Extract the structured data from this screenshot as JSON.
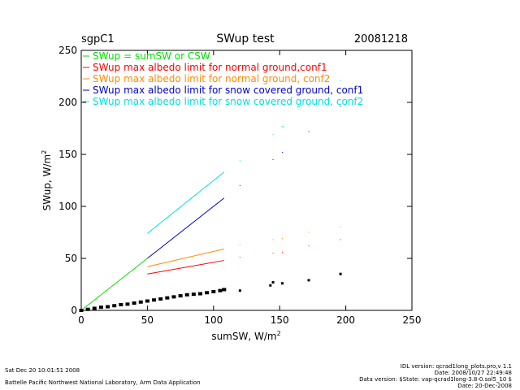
{
  "chart_data": {
    "type": "scatter",
    "site": "sgpC1",
    "title": "SWup test",
    "date": "20081218",
    "xlabel_base": "sumSW, W/m",
    "xlabel_sup": "2",
    "ylabel_base": "SWup, W/m",
    "ylabel_sup": "2",
    "xlim": [
      0,
      250
    ],
    "ylim": [
      0,
      250
    ],
    "xticks": [
      0,
      50,
      100,
      150,
      200,
      250
    ],
    "yticks": [
      0,
      50,
      100,
      150,
      200,
      250
    ],
    "legend": [
      {
        "label": "SWup = sumSW or CSW",
        "color": "#00e000"
      },
      {
        "label": "SWup max albedo limit for normal ground,conf1",
        "color": "#ff0000"
      },
      {
        "label": "SWup max albedo limit for normal ground, conf2",
        "color": "#ff8c00"
      },
      {
        "label": "SWup max albedo limit for snow covered ground, conf1",
        "color": "#0000cc"
      },
      {
        "label": "SWup max albedo limit for snow covered ground, conf2",
        "color": "#00e0e0"
      }
    ],
    "lines": [
      {
        "name": "one-to-one",
        "color": "#00e000",
        "x": [
          0,
          50
        ],
        "y": [
          0,
          50
        ]
      },
      {
        "name": "normal-conf1",
        "color": "#ff0000",
        "x": [
          50,
          108
        ],
        "y": [
          35,
          48
        ]
      },
      {
        "name": "normal-conf2",
        "color": "#ff8c00",
        "x": [
          50,
          108
        ],
        "y": [
          42,
          59
        ]
      },
      {
        "name": "snow-conf1",
        "color": "#0000cc",
        "x": [
          50,
          108
        ],
        "y": [
          50,
          108
        ]
      },
      {
        "name": "snow-conf2",
        "color": "#00e0e0",
        "x": [
          50,
          108
        ],
        "y": [
          74,
          133
        ]
      }
    ],
    "limit_dots": [
      {
        "color": "#ff0000",
        "x": [
          120,
          145,
          152,
          172,
          196
        ],
        "y": [
          51,
          55,
          56,
          62,
          68
        ]
      },
      {
        "color": "#ff8c00",
        "x": [
          120,
          145,
          152,
          172,
          196
        ],
        "y": [
          63,
          68,
          69,
          75,
          80
        ]
      },
      {
        "color": "#0000cc",
        "x": [
          120,
          145,
          152,
          172,
          196
        ],
        "y": [
          120,
          145,
          152,
          172,
          196
        ]
      },
      {
        "color": "#00e0e0",
        "x": [
          120,
          145,
          152,
          172,
          196
        ],
        "y": [
          144,
          169,
          177,
          196,
          221
        ]
      }
    ],
    "data_points": {
      "color": "#000000",
      "x": [
        0,
        5,
        10,
        15,
        20,
        25,
        30,
        35,
        40,
        45,
        50,
        55,
        60,
        65,
        70,
        75,
        80,
        85,
        90,
        95,
        100,
        105,
        108,
        120,
        143,
        145,
        152,
        172,
        196
      ],
      "y": [
        0,
        1,
        2,
        3,
        3.5,
        4.5,
        5.5,
        6,
        7,
        8,
        9,
        10,
        11,
        12,
        13,
        14,
        15,
        15.5,
        16,
        17,
        18,
        19,
        20,
        19,
        24,
        27,
        26,
        29,
        35
      ]
    }
  },
  "footer": {
    "timestamp": "Sat Dec 20 10:01:51 2008",
    "institution": "Battelle Pacific Northwest National Laboratory, Arm Data Application",
    "idl_version": "IDL version: qcrad1long_plots.pro,v 1.1",
    "file_date": "Date: 2008/10/27 22:49:48",
    "data_version": "Data version: $State: vap-qcrad1long-3.8-0.sol5_10 $",
    "run_date": "Date: 20-Dec-2008"
  }
}
